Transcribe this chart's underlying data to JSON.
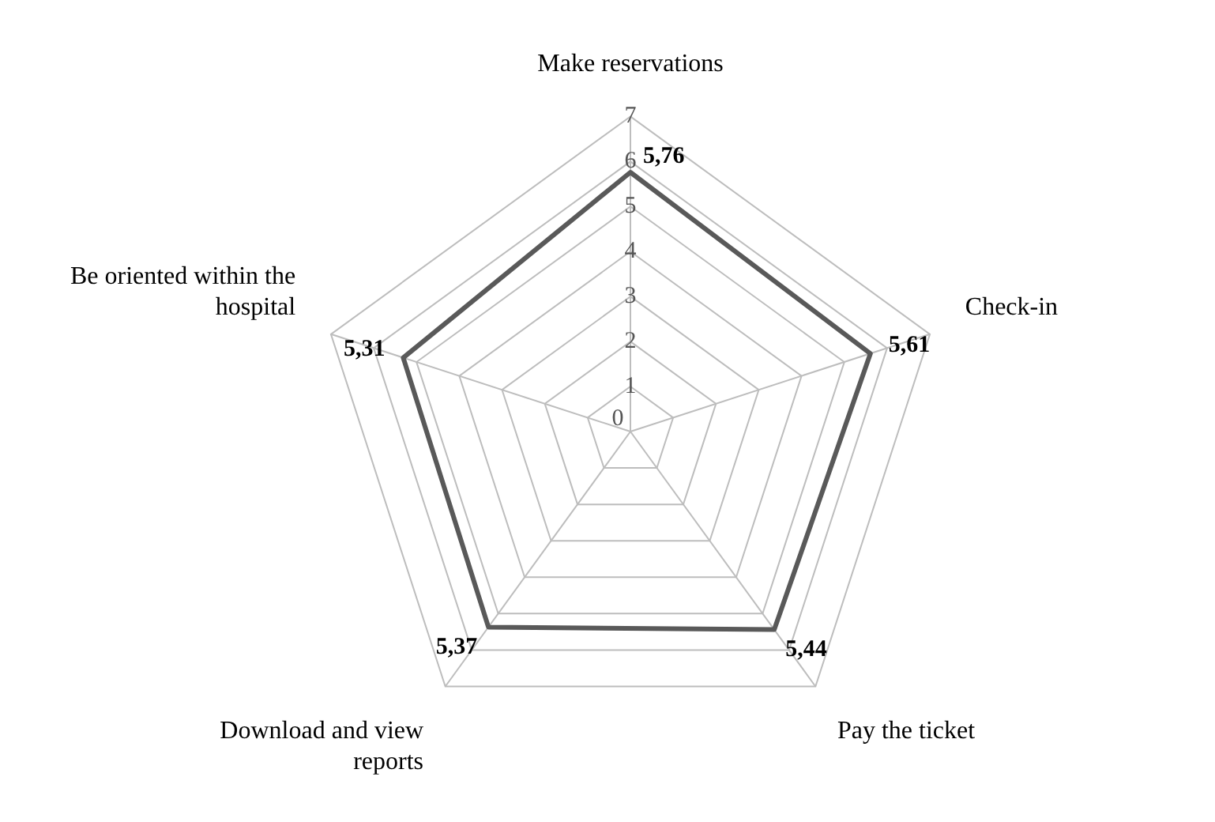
{
  "chart_data": {
    "type": "radar",
    "categories": [
      "Make reservations",
      "Check-in",
      "Pay the ticket",
      "Download and view reports",
      "Be oriented within the hospital"
    ],
    "series": [
      {
        "color": "#595959",
        "values": [
          5.76,
          5.61,
          5.44,
          5.37,
          5.31
        ],
        "value_labels": [
          "5,76",
          "5,61",
          "5,44",
          "5,37",
          "5,31"
        ]
      }
    ],
    "ylim": [
      0,
      7
    ],
    "yticks": [
      0,
      1,
      2,
      3,
      4,
      5,
      6,
      7
    ],
    "grid": true,
    "legend": false,
    "marker": "none",
    "line_style": "solid"
  }
}
